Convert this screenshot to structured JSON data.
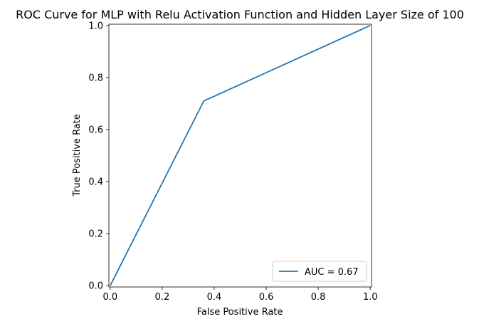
{
  "chart_data": {
    "type": "line",
    "title": "ROC Curve for MLP with Relu Activation Function and Hidden Layer Size of 100",
    "xlabel": "False Positive Rate",
    "ylabel": "True Positive Rate",
    "xlim": [
      -0.005,
      1.005
    ],
    "ylim": [
      -0.005,
      1.005
    ],
    "xticks": [
      0.0,
      0.2,
      0.4,
      0.6,
      0.8,
      1.0
    ],
    "xtick_labels": [
      "0.0",
      "0.2",
      "0.4",
      "0.6",
      "0.8",
      "1.0"
    ],
    "yticks": [
      0.0,
      0.2,
      0.4,
      0.6,
      0.8,
      1.0
    ],
    "ytick_labels": [
      "0.0",
      "0.2",
      "0.4",
      "0.6",
      "0.8",
      "1.0"
    ],
    "grid": false,
    "legend_position": "lower-right",
    "series": [
      {
        "name": "AUC = 0.67",
        "color": "#1f77b4",
        "x": [
          0.0,
          0.36,
          1.0
        ],
        "y": [
          0.0,
          0.71,
          1.0
        ]
      }
    ]
  }
}
